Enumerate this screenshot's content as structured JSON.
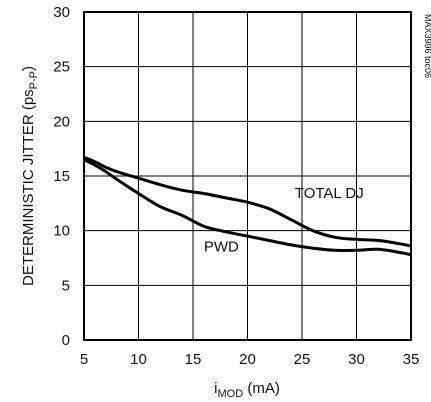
{
  "chart_data": {
    "type": "line",
    "xlabel_main": "i",
    "xlabel_sub": "MOD",
    "xlabel_unit": " (mA)",
    "ylabel_main": "DETERMINISTIC JITTER (ps",
    "ylabel_sub": "P-P",
    "ylabel_end": ")",
    "xlim": [
      5,
      35
    ],
    "ylim": [
      0,
      30
    ],
    "x_ticks": [
      "5",
      "10",
      "15",
      "20",
      "25",
      "30",
      "35"
    ],
    "y_ticks": [
      "0",
      "5",
      "10",
      "15",
      "20",
      "25",
      "30"
    ],
    "grid": true,
    "series": [
      {
        "name": "TOTAL DJ",
        "x": [
          5,
          6,
          7,
          8,
          10,
          12,
          14,
          16,
          18,
          20,
          22,
          24,
          26,
          28,
          30,
          32,
          34,
          35
        ],
        "y": [
          16.7,
          16.3,
          15.8,
          15.4,
          14.8,
          14.2,
          13.7,
          13.4,
          13.0,
          12.6,
          12.0,
          11.0,
          10.0,
          9.4,
          9.2,
          9.1,
          8.8,
          8.6
        ]
      },
      {
        "name": "PWD",
        "x": [
          5,
          6,
          7,
          8,
          10,
          12,
          14,
          16,
          18,
          20,
          22,
          24,
          26,
          28,
          30,
          32,
          34,
          35
        ],
        "y": [
          16.5,
          16.0,
          15.4,
          14.7,
          13.4,
          12.2,
          11.4,
          10.4,
          9.9,
          9.5,
          9.1,
          8.7,
          8.4,
          8.2,
          8.2,
          8.3,
          8.0,
          7.8
        ]
      }
    ],
    "annotations": [
      {
        "text": "TOTAL DJ",
        "x": 27.5,
        "y": 13.0
      },
      {
        "text": "PWD",
        "x": 17.6,
        "y": 8.1
      }
    ],
    "side_label": "MAX3996 toc06"
  }
}
